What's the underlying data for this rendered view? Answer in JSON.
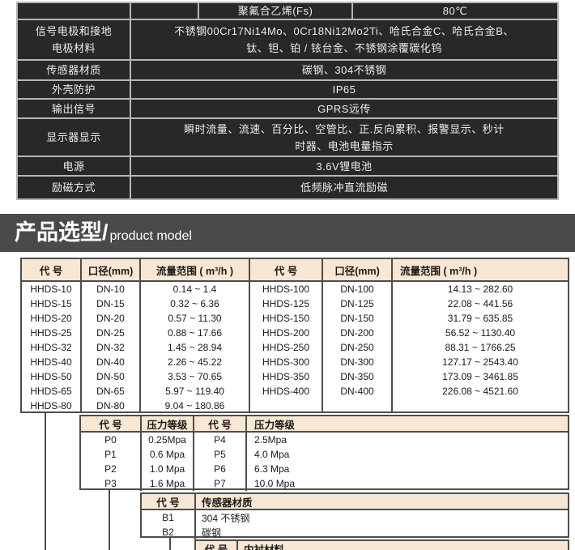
{
  "colors": {
    "spec_cell_bg": "#282828",
    "spec_border": "#b5b5b5",
    "spec_text": "#ededed",
    "banner_bg": "#4a4a4a",
    "table_border": "#4d4d4d",
    "header_bg": "#f8e7d2",
    "text": "#1a1a1a"
  },
  "spec_table": {
    "row_lining": {
      "cell2": "",
      "cell3": "聚氟合乙烯(Fs)",
      "cell4": "80℃"
    },
    "row_electrode": {
      "label_line1": "信号电极和接地",
      "label_line2": "电极材料",
      "value_line1": "不锈钢00Cr17Ni14Mo、0Cr18Ni12Mo2Ti、哈氏合金C、哈氏合金B、",
      "value_line2": "钛、钽、铂 / 铱台金、不锈钢涂覆碳化钨"
    },
    "row_sensor": {
      "label": "传感器材质",
      "value": "碳钢、304不锈钢"
    },
    "row_housing": {
      "label": "外壳防护",
      "value": "IP65"
    },
    "row_output": {
      "label": "输出信号",
      "value": "GPRS远传"
    },
    "row_display": {
      "label": "显示器显示",
      "value_line1": "瞬时流量、流速、百分比、空管比、正.反向累积、报警显示、秒计",
      "value_line2": "时器、电池电量指示"
    },
    "row_power": {
      "label": "电源",
      "value": "3.6V锂电池"
    },
    "row_excitation": {
      "label": "励磁方式",
      "value": "低频脉冲直流励磁"
    }
  },
  "banner": {
    "title_zh": "产品选型/",
    "title_en": "product model"
  },
  "model_table": {
    "headers": [
      "代 号",
      "口径(mm)",
      "流量范围 ( m³/h )",
      "代 号",
      "口径(mm)",
      "流量范围 ( m³/h )"
    ],
    "rows": [
      [
        "HHDS-10",
        "DN-10",
        "0.14 ~ 1.4",
        "HHDS-100",
        "DN-100",
        "14.13 ~ 282.60"
      ],
      [
        "HHDS-15",
        "DN-15",
        "0.32 ~ 6.36",
        "HHDS-125",
        "DN-125",
        "22.08 ~ 441.56"
      ],
      [
        "HHDS-20",
        "DN-20",
        "0.57 ~ 11.30",
        "HHDS-150",
        "DN-150",
        "31.79 ~ 635.85"
      ],
      [
        "HHDS-25",
        "DN-25",
        "0.88 ~ 17.66",
        "HHDS-200",
        "DN-200",
        "56.52 ~ 1130.40"
      ],
      [
        "HHDS-32",
        "DN-32",
        "1.45 ~ 28.94",
        "HHDS-250",
        "DN-250",
        "88.31 ~ 1766.25"
      ],
      [
        "HHDS-40",
        "DN-40",
        "2.26 ~ 45.22",
        "HHDS-300",
        "DN-300",
        "127.17 ~ 2543.40"
      ],
      [
        "HHDS-50",
        "DN-50",
        "3.53 ~ 70.65",
        "HHDS-350",
        "DN-350",
        "173.09 ~ 3461.85"
      ],
      [
        "HHDS-65",
        "DN-65",
        "5.97 ~ 119.40",
        "HHDS-400",
        "DN-400",
        "226.08 ~ 4521.60"
      ],
      [
        "HHDS-80",
        "DN-80",
        "9.04 ~ 180.86",
        "",
        "",
        ""
      ]
    ]
  },
  "pressure_table": {
    "headers": [
      "代 号",
      "压力等级",
      "代 号",
      "压力等级"
    ],
    "rows": [
      [
        "P0",
        "0.25Mpa",
        "P4",
        "2.5Mpa"
      ],
      [
        "P1",
        "0.6 Mpa",
        "P5",
        "4.0 Mpa"
      ],
      [
        "P2",
        "1.0 Mpa",
        "P6",
        "6.3 Mpa"
      ],
      [
        "P3",
        "1.6 Mpa",
        "P7",
        "10.0 Mpa"
      ]
    ]
  },
  "sensor_material_table": {
    "headers": [
      "代 号",
      "传感器材质"
    ],
    "rows": [
      [
        "B1",
        "304 不锈钢"
      ],
      [
        "B2",
        "碳钢"
      ]
    ]
  },
  "liner_material_table": {
    "headers": [
      "代 号",
      "内衬材料"
    ],
    "rows": []
  }
}
